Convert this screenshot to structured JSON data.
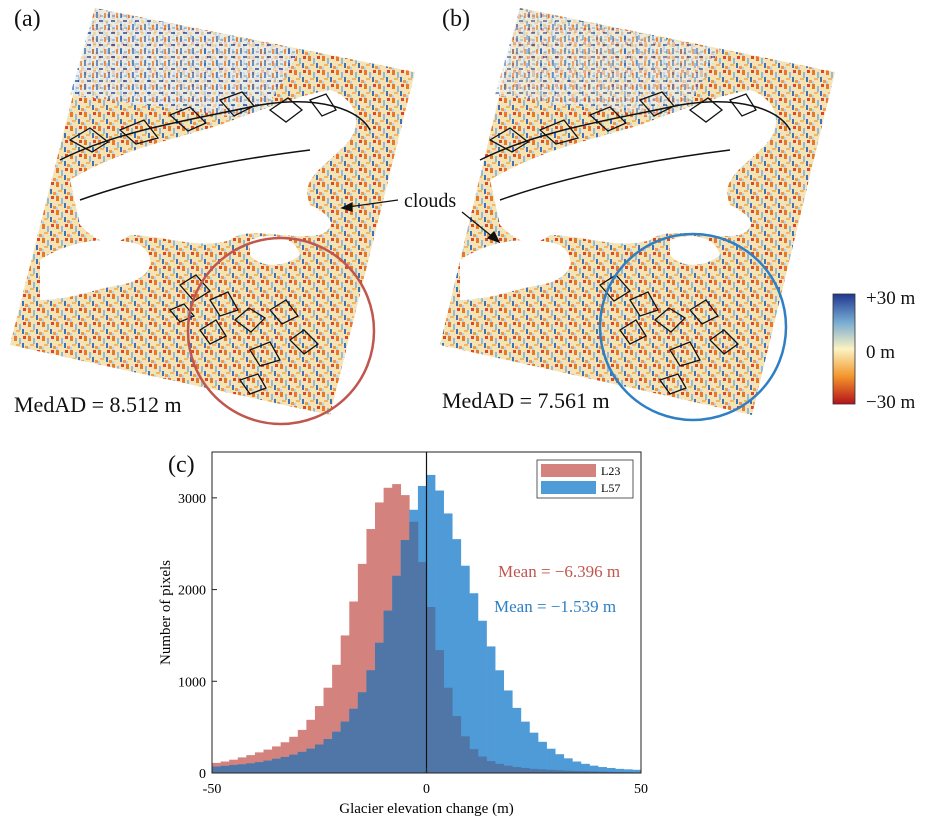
{
  "panels": {
    "a": {
      "label": "(a)",
      "medad": "MedAD = 8.512 m"
    },
    "b": {
      "label": "(b)",
      "medad": "MedAD = 7.561 m"
    },
    "c": {
      "label": "(c)"
    }
  },
  "annotations": {
    "clouds": "clouds"
  },
  "colorbar": {
    "max_label": "+30 m",
    "mid_label": "0 m",
    "min_label": "−30 m"
  },
  "colors": {
    "circle_a": "#c0564d",
    "circle_b": "#2e7fc4",
    "l23_bar": "#d4827d",
    "l57_bar": "#4f9bd8",
    "overlap": "#4f76a7",
    "mean_l23_text": "#c0564d",
    "mean_l57_text": "#2e7fc4"
  },
  "chart_data": {
    "type": "bar",
    "xlabel": "Glacier elevation change (m)",
    "ylabel": "Number of pixels",
    "xlim": [
      -50,
      50
    ],
    "ylim": [
      0,
      3500
    ],
    "xticks": [
      -50,
      0,
      50
    ],
    "yticks": [
      0,
      1000,
      2000,
      3000
    ],
    "bin_width": 2,
    "vline_x": 0,
    "legend_position": "top-right",
    "series": [
      {
        "name": "L23",
        "mean_label": "Mean = −6.396 m",
        "values": [
          110,
          125,
          145,
          170,
          195,
          225,
          255,
          290,
          335,
          395,
          470,
          580,
          730,
          930,
          1180,
          1500,
          1870,
          2280,
          2660,
          2950,
          3110,
          3150,
          3030,
          2740,
          2300,
          1810,
          1340,
          930,
          620,
          400,
          260,
          180,
          130,
          100,
          80,
          65,
          55,
          45,
          40,
          35,
          30,
          25,
          22,
          20,
          18,
          15,
          12,
          10,
          8,
          5
        ]
      },
      {
        "name": "L57",
        "mean_label": "Mean = −1.539 m",
        "values": [
          70,
          78,
          88,
          95,
          105,
          118,
          135,
          155,
          175,
          200,
          230,
          265,
          310,
          370,
          450,
          560,
          700,
          880,
          1120,
          1420,
          1770,
          2150,
          2540,
          2870,
          3130,
          3250,
          3080,
          2830,
          2550,
          2260,
          1960,
          1660,
          1380,
          1120,
          900,
          710,
          560,
          440,
          340,
          265,
          205,
          160,
          125,
          100,
          80,
          65,
          55,
          45,
          40,
          35
        ]
      }
    ]
  }
}
